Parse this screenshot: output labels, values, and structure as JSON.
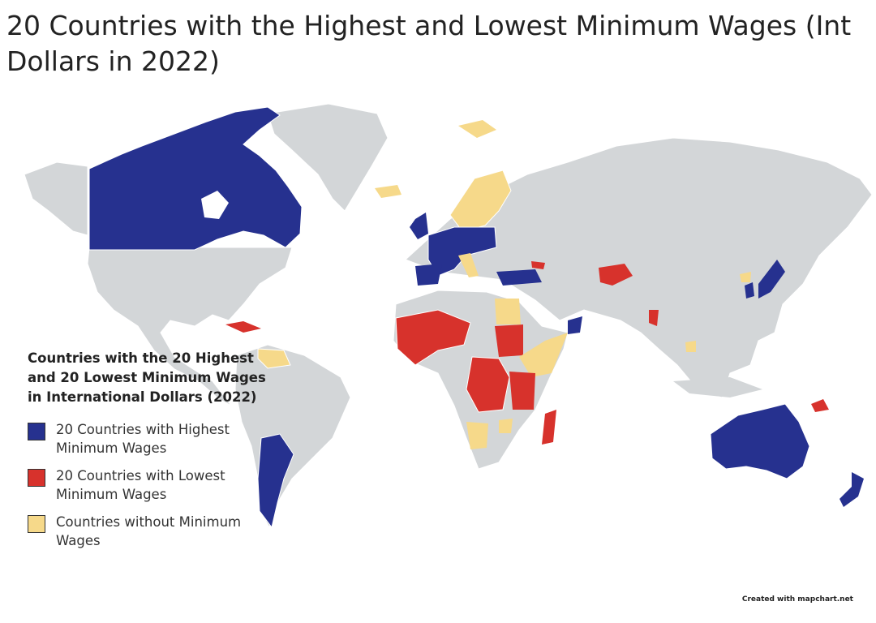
{
  "title": "20 Countries with the Highest and Lowest Minimum Wages (Int Dollars in 2022)",
  "colors": {
    "ocean": "#ffffff",
    "land": "#d3d6d8",
    "border": "#ffffff",
    "highest": "#26318f",
    "lowest": "#d7322c",
    "no_minimum": "#f6d98a"
  },
  "legend": {
    "title": "Countries with the 20 Highest and 20 Lowest Minimum Wages in International Dollars (2022)",
    "items": [
      {
        "label": "20 Countries with Highest Minimum Wages",
        "color": "#26318f"
      },
      {
        "label": "20 Countries with Lowest Minimum Wages",
        "color": "#d7322c"
      },
      {
        "label": "Countries without Minimum Wages",
        "color": "#f6d98a"
      }
    ]
  },
  "credit": "Created with mapchart.net"
}
